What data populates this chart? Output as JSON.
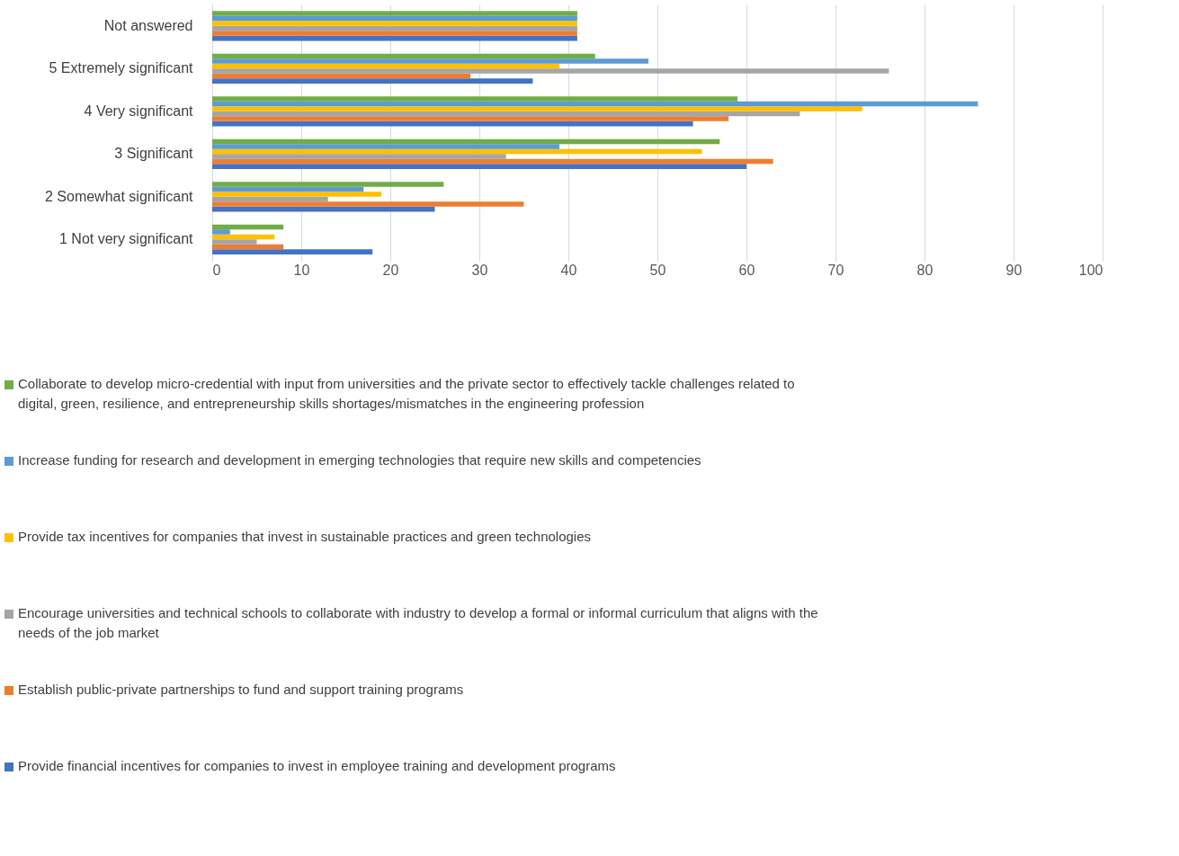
{
  "chart_data": {
    "type": "bar",
    "orientation": "horizontal",
    "categories": [
      "Not answered",
      "5 Extremely significant",
      "4 Very significant",
      "3 Significant",
      "2 Somewhat significant",
      "1 Not very significant"
    ],
    "series": [
      {
        "name": "Provide financial incentives for companies to invest in employee training and development programs",
        "color": "#4472c4",
        "values": [
          41,
          36,
          54,
          60,
          25,
          18
        ]
      },
      {
        "name": "Establish public-private partnerships to fund and support training programs",
        "color": "#ed7d31",
        "values": [
          41,
          29,
          58,
          63,
          35,
          8
        ]
      },
      {
        "name": "Encourage universities and technical schools to collaborate with industry to develop a formal or informal curriculum that aligns with the needs of the job market",
        "color": "#a5a5a5",
        "values": [
          41,
          76,
          66,
          33,
          13,
          5
        ]
      },
      {
        "name": "Provide tax incentives for companies that invest in sustainable practices and green technologies",
        "color": "#ffc000",
        "values": [
          41,
          39,
          73,
          55,
          19,
          7
        ]
      },
      {
        "name": "Increase funding for research and development in emerging technologies that require new skills and competencies",
        "color": "#5b9bd5",
        "values": [
          41,
          49,
          86,
          39,
          17,
          2
        ]
      },
      {
        "name": "Collaborate to develop micro-credential with input from universities and the private sector to effectively tackle challenges related to digital, green, resilience, and entrepreneurship skills shortages/mismatches in the engineering profession",
        "color": "#70ad47",
        "values": [
          41,
          43,
          59,
          57,
          26,
          8
        ]
      }
    ],
    "xlim": [
      0,
      100
    ],
    "xticks": [
      0,
      10,
      20,
      30,
      40,
      50,
      60,
      70,
      80,
      90,
      100
    ],
    "grid": "x",
    "legend": "bottom"
  }
}
